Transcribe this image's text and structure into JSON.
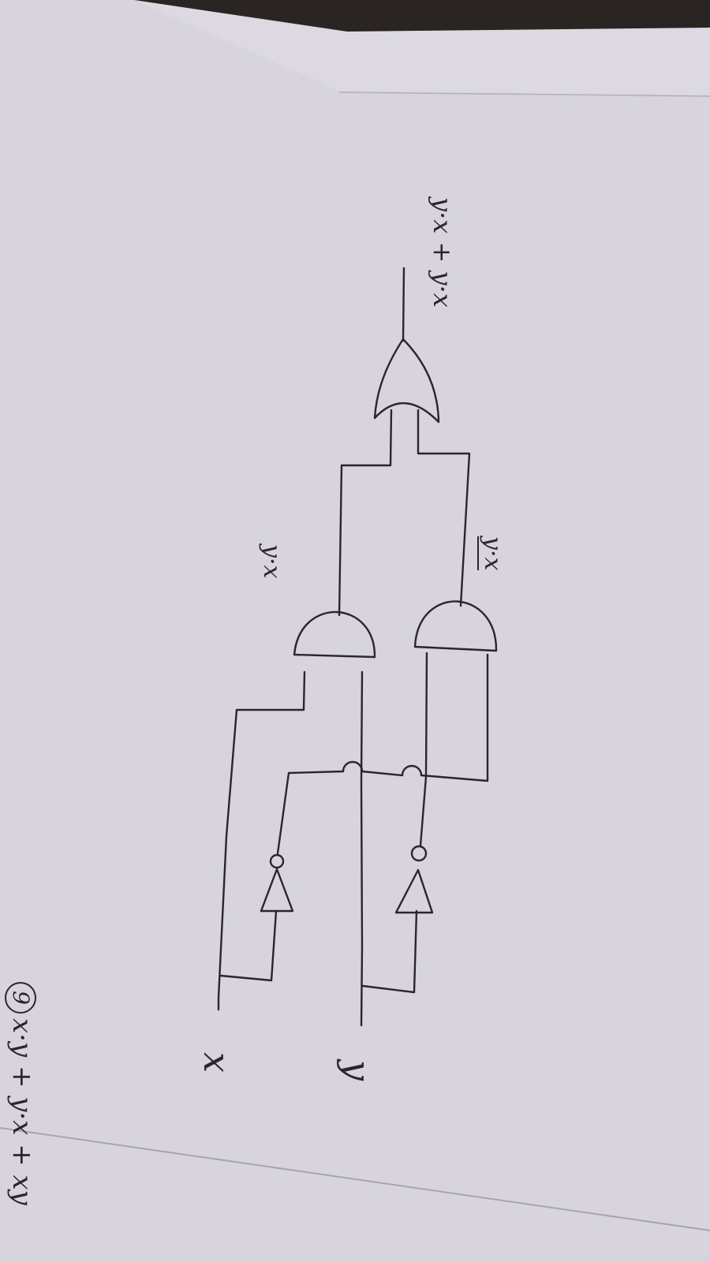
{
  "problem": {
    "number": "9",
    "expression": "x·y + y·x + xy"
  },
  "inputs": {
    "x": "x",
    "y": "y"
  },
  "gate_labels": {
    "and_top": "y·x",
    "and_bottom": "y·x"
  },
  "output": {
    "label": "y·x + y·x"
  },
  "colors": {
    "paper": "#dcd9e2",
    "paper_edge": "#cfccd6",
    "ink": "#2b2530",
    "background": "#2a2522"
  }
}
